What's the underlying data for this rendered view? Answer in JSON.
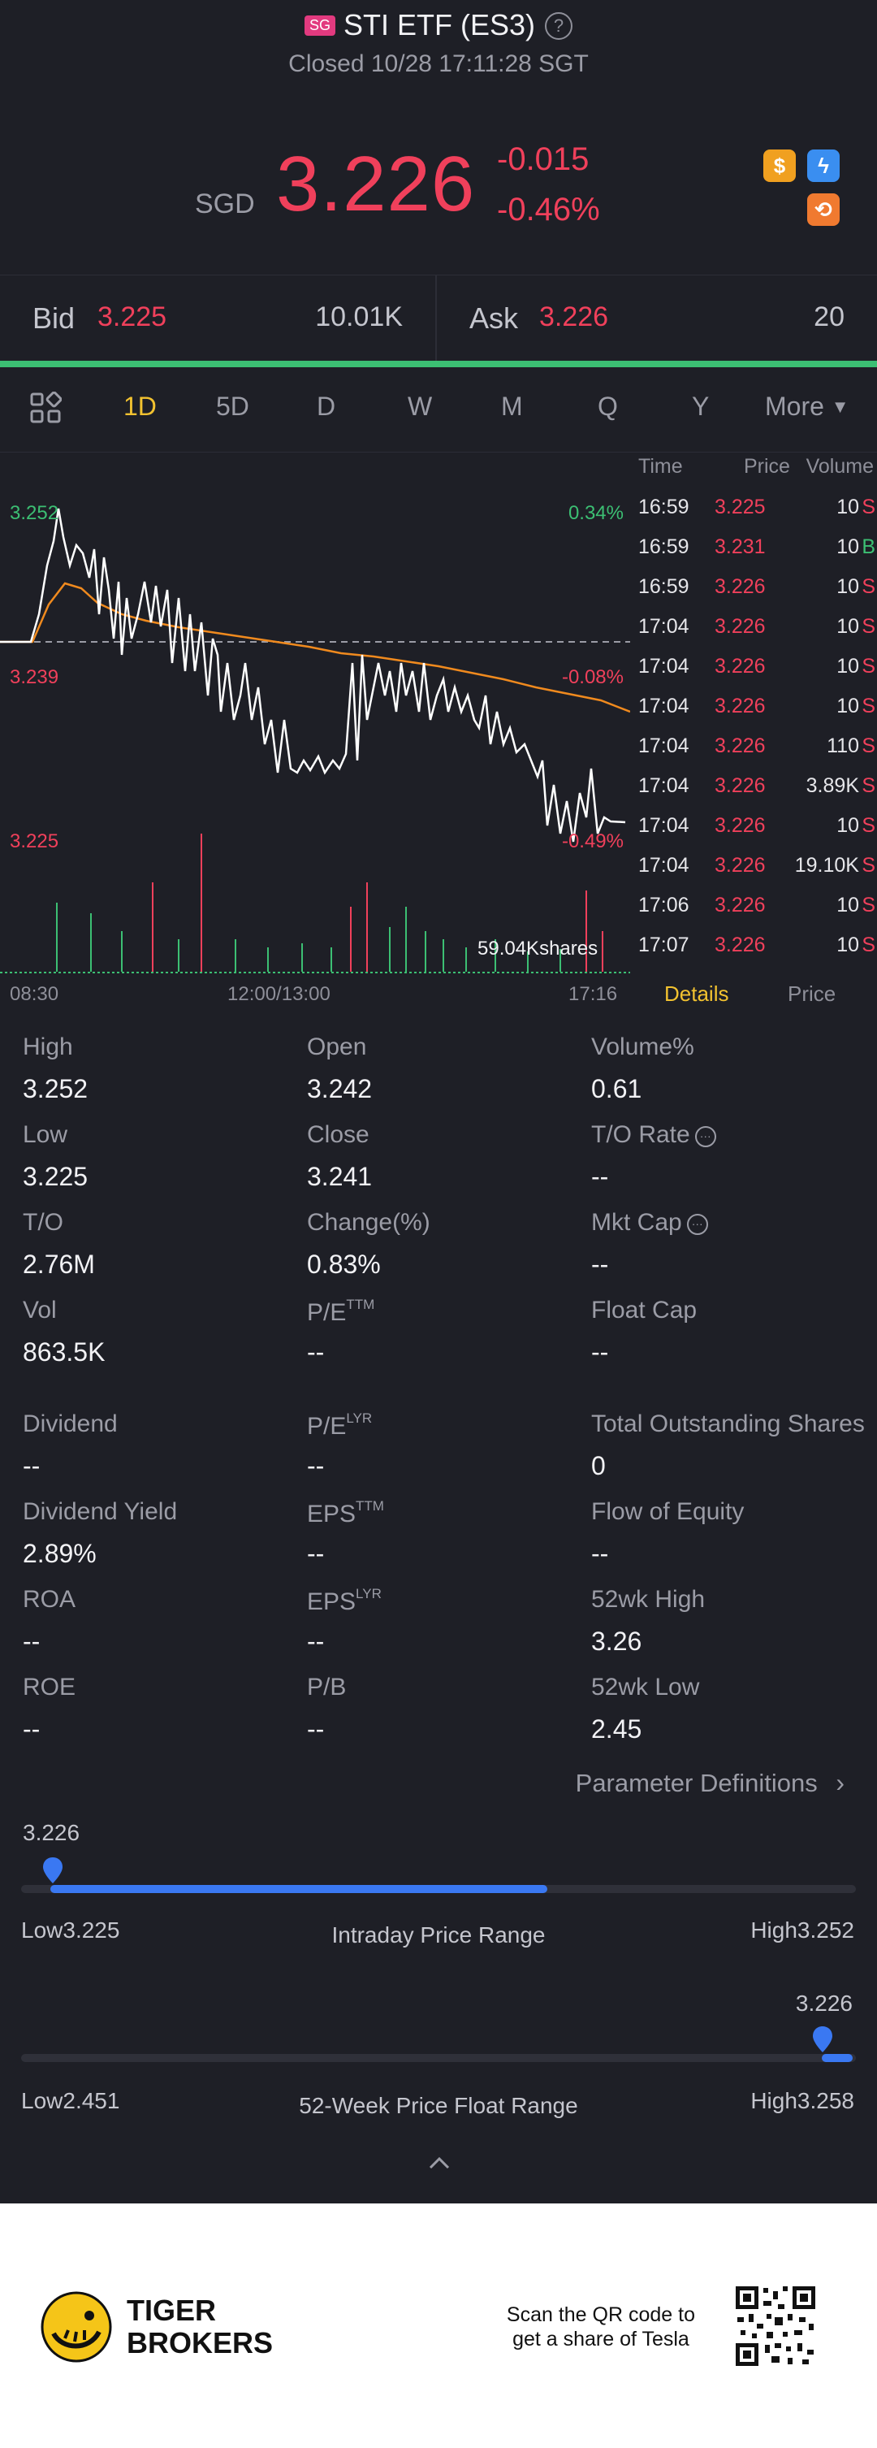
{
  "header": {
    "flag": "SG",
    "title": "STI ETF (ES3)",
    "help_icon": "question-circle-icon",
    "status": "Closed 10/28 17:11:28 SGT"
  },
  "quote": {
    "currency": "SGD",
    "price": "3.226",
    "change": "-0.015",
    "change_pct": "-0.46%",
    "price_color": "#f0405b",
    "icons": [
      "dollar-icon",
      "lightning-icon",
      "options-icon"
    ]
  },
  "bidask": {
    "bid_label": "Bid",
    "bid_price": "3.225",
    "bid_volume": "10.01K",
    "ask_label": "Ask",
    "ask_price": "3.226",
    "ask_volume": "20"
  },
  "tabs": {
    "grid_icon": "grid-icon",
    "items": [
      "1D",
      "5D",
      "D",
      "W",
      "M",
      "Q",
      "Y"
    ],
    "active": "1D",
    "more_label": "More"
  },
  "chart": {
    "y_high": "3.252",
    "y_mid": "3.239",
    "y_low": "3.225",
    "pct_high": "0.34%",
    "pct_mid": "-0.08%",
    "pct_low": "-0.49%",
    "volume_label": "59.04Kshares",
    "x_labels": [
      "08:30",
      "12:00/13:00",
      "17:16"
    ]
  },
  "trades": {
    "headers": {
      "time": "Time",
      "price": "Price",
      "volume": "Volume"
    },
    "rows": [
      {
        "time": "16:59",
        "price": "3.225",
        "volume": "10",
        "side": "S"
      },
      {
        "time": "16:59",
        "price": "3.231",
        "volume": "10",
        "side": "B"
      },
      {
        "time": "16:59",
        "price": "3.226",
        "volume": "10",
        "side": "S"
      },
      {
        "time": "17:04",
        "price": "3.226",
        "volume": "10",
        "side": "S"
      },
      {
        "time": "17:04",
        "price": "3.226",
        "volume": "10",
        "side": "S"
      },
      {
        "time": "17:04",
        "price": "3.226",
        "volume": "10",
        "side": "S"
      },
      {
        "time": "17:04",
        "price": "3.226",
        "volume": "110",
        "side": "S"
      },
      {
        "time": "17:04",
        "price": "3.226",
        "volume": "3.89K",
        "side": "S"
      },
      {
        "time": "17:04",
        "price": "3.226",
        "volume": "10",
        "side": "S"
      },
      {
        "time": "17:04",
        "price": "3.226",
        "volume": "19.10K",
        "side": "S"
      },
      {
        "time": "17:06",
        "price": "3.226",
        "volume": "10",
        "side": "S"
      },
      {
        "time": "17:07",
        "price": "3.226",
        "volume": "10",
        "side": "S"
      }
    ],
    "tab_details": "Details",
    "tab_price": "Price"
  },
  "stats": {
    "high_label": "High",
    "high": "3.252",
    "open_label": "Open",
    "open": "3.242",
    "volpct_label": "Volume%",
    "volpct": "0.61",
    "low_label": "Low",
    "low": "3.225",
    "close_label": "Close",
    "close": "3.241",
    "torate_label": "T/O Rate",
    "torate": "--",
    "to_label": "T/O",
    "to": "2.76M",
    "changepct_label": "Change(%)",
    "changepct": "0.83%",
    "mktcap_label": "Mkt Cap",
    "mktcap": "--",
    "vol_label": "Vol",
    "vol": "863.5K",
    "pe_ttm_label": "P/E",
    "pe_ttm_sup": "TTM",
    "pe_ttm": "--",
    "floatcap_label": "Float Cap",
    "floatcap": "--",
    "dividend_label": "Dividend",
    "dividend": "--",
    "pe_lyr_label": "P/E",
    "pe_lyr_sup": "LYR",
    "pe_lyr": "--",
    "tos_label": "Total Outstanding Shares",
    "tos": "0",
    "divyield_label": "Dividend Yield",
    "divyield": "2.89%",
    "eps_ttm_label": "EPS",
    "eps_ttm_sup": "TTM",
    "eps_ttm": "--",
    "flow_label": "Flow of Equity",
    "flow": "--",
    "roa_label": "ROA",
    "roa": "--",
    "eps_lyr_label": "EPS",
    "eps_lyr_sup": "LYR",
    "eps_lyr": "--",
    "wk52high_label": "52wk High",
    "wk52high": "3.26",
    "roe_label": "ROE",
    "roe": "--",
    "pb_label": "P/B",
    "pb": "--",
    "wk52low_label": "52wk Low",
    "wk52low": "2.45",
    "param_link": "Parameter Definitions"
  },
  "ranges": {
    "intraday": {
      "current": "3.226",
      "low_label": "Low",
      "low": "3.225",
      "title": "Intraday Price Range",
      "high_label": "High",
      "high": "3.252",
      "position": 0.04
    },
    "week52": {
      "current": "3.226",
      "low_label": "Low",
      "low": "2.451",
      "title": "52-Week Price Float Range",
      "high_label": "High",
      "high": "3.258",
      "position": 0.99
    }
  },
  "footer": {
    "brand_line1": "TIGER",
    "brand_line2": "BROKERS",
    "qr_line1": "Scan the QR code to",
    "qr_line2": "get a share of Tesla"
  }
}
